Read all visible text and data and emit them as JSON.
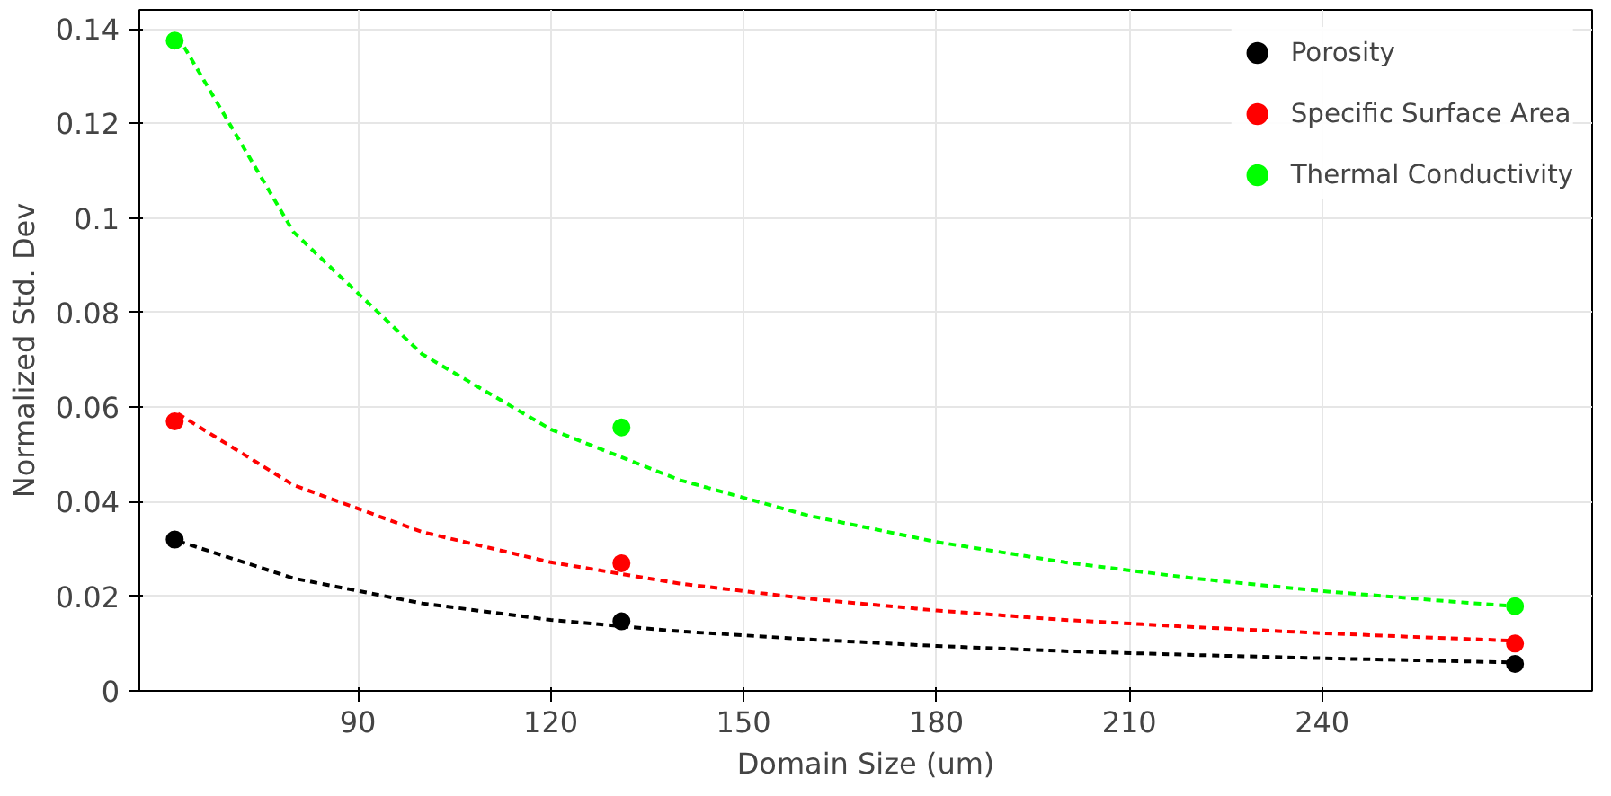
{
  "chart_data": {
    "type": "scatter",
    "xlabel": "Domain Size (um)",
    "ylabel": "Normalized Std. Dev",
    "xlim": [
      56,
      282
    ],
    "ylim": [
      0,
      0.144
    ],
    "xticks": [
      90,
      120,
      150,
      180,
      210,
      240
    ],
    "yticks": [
      0,
      0.02,
      0.04,
      0.06,
      0.08,
      0.1,
      0.12,
      0.14
    ],
    "grid": true,
    "legend": "top right",
    "series": [
      {
        "name": "Porosity",
        "marker": "circle",
        "color": "#000000",
        "x": [
          61.5,
          131,
          270
        ],
        "values": [
          0.032,
          0.0147,
          0.0057
        ]
      },
      {
        "name": "Specific Surface Area",
        "marker": "circle",
        "color": "#ff0000",
        "x": [
          61.5,
          131,
          270
        ],
        "values": [
          0.057,
          0.027,
          0.01
        ]
      },
      {
        "name": "Thermal Conductivity",
        "marker": "circle",
        "color": "#00ff00",
        "x": [
          61.5,
          131,
          270
        ],
        "values": [
          0.1375,
          0.0557,
          0.0179
        ]
      },
      {
        "type": "line",
        "line_style": "dashed",
        "color": "#000000",
        "x": [
          62,
          80,
          100,
          120,
          140,
          160,
          180,
          200,
          220,
          240,
          260,
          270
        ],
        "values": [
          0.0317,
          0.0238,
          0.0185,
          0.015,
          0.0126,
          0.0109,
          0.0095,
          0.0084,
          0.0076,
          0.0069,
          0.0063,
          0.006
        ]
      },
      {
        "type": "line",
        "line_style": "dashed",
        "color": "#ff0000",
        "x": [
          62,
          80,
          100,
          120,
          140,
          160,
          180,
          200,
          220,
          240,
          260,
          270
        ],
        "values": [
          0.0586,
          0.0435,
          0.0336,
          0.0272,
          0.0227,
          0.0195,
          0.017,
          0.015,
          0.0135,
          0.0122,
          0.0111,
          0.0106
        ]
      },
      {
        "type": "line",
        "line_style": "dashed",
        "color": "#00ff00",
        "x": [
          62,
          80,
          100,
          120,
          140,
          160,
          180,
          200,
          220,
          240,
          260,
          270
        ],
        "values": [
          0.1384,
          0.097,
          0.0712,
          0.0553,
          0.0446,
          0.0371,
          0.0315,
          0.0272,
          0.0238,
          0.0211,
          0.0189,
          0.0179
        ]
      }
    ]
  }
}
